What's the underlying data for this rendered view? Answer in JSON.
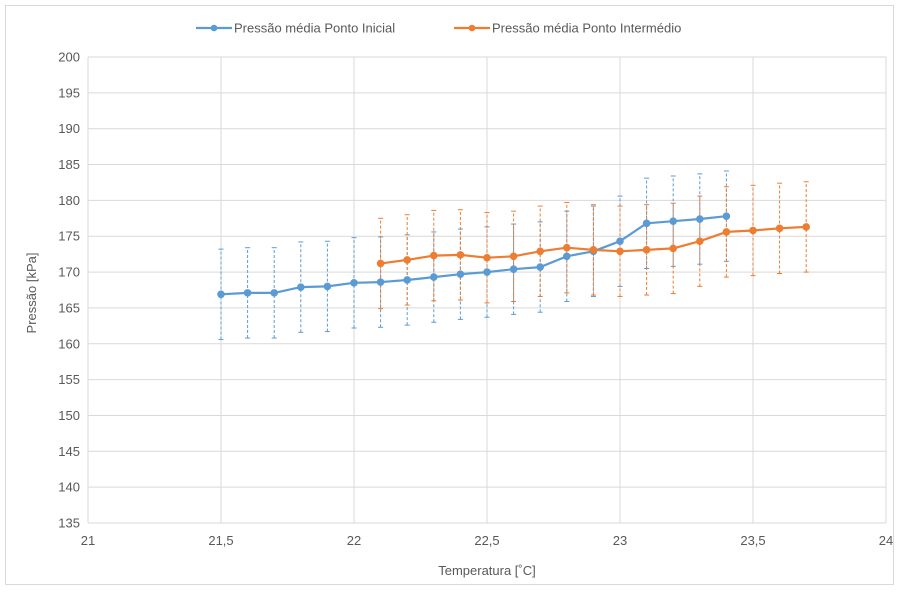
{
  "chart_data": {
    "type": "line",
    "title": "",
    "xlabel": "Temperatura [˚C]",
    "ylabel": "Pressão [kPa]",
    "xlim": [
      21,
      24
    ],
    "ylim": [
      135,
      200
    ],
    "x_ticks": [
      21,
      21.5,
      22,
      22.5,
      23,
      23.5,
      24
    ],
    "x_tick_labels": [
      "21",
      "21,5",
      "22",
      "22,5",
      "23",
      "23,5",
      "24"
    ],
    "y_ticks": [
      135,
      140,
      145,
      150,
      155,
      160,
      165,
      170,
      175,
      180,
      185,
      190,
      195,
      200
    ],
    "y_tick_labels": [
      "135",
      "140",
      "145",
      "150",
      "155",
      "160",
      "165",
      "170",
      "175",
      "180",
      "185",
      "190",
      "195",
      "200"
    ],
    "grid": true,
    "legend_position": "top",
    "series": [
      {
        "name": "Pressão média Ponto Inicial",
        "color": "#5b9bd5",
        "x": [
          21.5,
          21.6,
          21.7,
          21.8,
          21.9,
          22.0,
          22.1,
          22.2,
          22.3,
          22.4,
          22.5,
          22.6,
          22.7,
          22.8,
          22.9,
          23.0,
          23.1,
          23.2,
          23.3,
          23.4
        ],
        "y": [
          166.9,
          167.1,
          167.1,
          167.9,
          168.0,
          168.5,
          168.6,
          168.9,
          169.3,
          169.7,
          170.0,
          170.4,
          170.7,
          172.2,
          172.9,
          174.3,
          176.8,
          177.1,
          177.4,
          177.8
        ],
        "err": [
          6.3,
          6.3,
          6.3,
          6.3,
          6.3,
          6.3,
          6.3,
          6.3,
          6.3,
          6.3,
          6.3,
          6.3,
          6.3,
          6.3,
          6.3,
          6.3,
          6.3,
          6.3,
          6.3,
          6.3
        ]
      },
      {
        "name": "Pressão média Ponto Intermédio",
        "color": "#ed7d31",
        "x": [
          22.1,
          22.2,
          22.3,
          22.4,
          22.5,
          22.6,
          22.7,
          22.8,
          22.9,
          23.0,
          23.1,
          23.2,
          23.3,
          23.4,
          23.5,
          23.6,
          23.7
        ],
        "y": [
          171.2,
          171.7,
          172.3,
          172.4,
          172.0,
          172.2,
          172.9,
          173.4,
          173.1,
          172.9,
          173.1,
          173.3,
          174.3,
          175.6,
          175.8,
          176.1,
          176.3
        ],
        "err": [
          6.3,
          6.3,
          6.3,
          6.3,
          6.3,
          6.3,
          6.3,
          6.3,
          6.3,
          6.3,
          6.3,
          6.3,
          6.3,
          6.3,
          6.3,
          6.3,
          6.3
        ]
      }
    ]
  }
}
